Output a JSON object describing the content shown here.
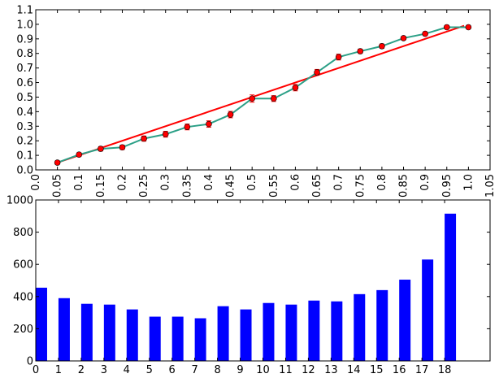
{
  "chart_data": [
    {
      "type": "line",
      "title": "",
      "xlabel": "",
      "ylabel": "",
      "xlim": [
        0.0,
        1.05
      ],
      "ylim": [
        0.0,
        1.1
      ],
      "xticks": [
        "0.0",
        "0.05",
        "0.1",
        "0.15",
        "0.2",
        "0.25",
        "0.3",
        "0.35",
        "0.4",
        "0.45",
        "0.5",
        "0.55",
        "0.6",
        "0.65",
        "0.7",
        "0.75",
        "0.8",
        "0.85",
        "0.9",
        "0.95",
        "1.0",
        "1.05"
      ],
      "yticks": [
        "0.0",
        "0.1",
        "0.2",
        "0.3",
        "0.4",
        "0.5",
        "0.6",
        "0.7",
        "0.8",
        "0.9",
        "1.0",
        "1.1"
      ],
      "grid": false,
      "series": [
        {
          "kind": "errorbar-line",
          "color": "#2ca087",
          "marker_color": "#ff0000",
          "x": [
            0.05,
            0.1,
            0.15,
            0.2,
            0.25,
            0.3,
            0.35,
            0.4,
            0.45,
            0.5,
            0.55,
            0.6,
            0.65,
            0.7,
            0.75,
            0.8,
            0.85,
            0.9,
            0.95,
            1.0
          ],
          "y": [
            0.05,
            0.105,
            0.145,
            0.155,
            0.215,
            0.245,
            0.295,
            0.315,
            0.38,
            0.49,
            0.49,
            0.565,
            0.67,
            0.775,
            0.815,
            0.85,
            0.905,
            0.935,
            0.98,
            0.98
          ],
          "error": [
            0.012,
            0.012,
            0.015,
            0.015,
            0.018,
            0.02,
            0.02,
            0.022,
            0.022,
            0.025,
            0.02,
            0.022,
            0.02,
            0.02,
            0.015,
            0.015,
            0.012,
            0.012,
            0.01,
            0.005
          ]
        },
        {
          "kind": "line",
          "color": "#ff0000",
          "x": [
            0.05,
            0.99
          ],
          "y": [
            0.05,
            0.99
          ]
        }
      ]
    },
    {
      "type": "bar",
      "title": "",
      "xlabel": "",
      "ylabel": "",
      "xlim": [
        0,
        20
      ],
      "ylim": [
        0,
        1000
      ],
      "categories": [
        "0",
        "1",
        "2",
        "3",
        "4",
        "5",
        "6",
        "7",
        "8",
        "9",
        "10",
        "11",
        "12",
        "13",
        "14",
        "15",
        "16",
        "17",
        "18"
      ],
      "yticks": [
        "0",
        "200",
        "400",
        "600",
        "800",
        "1000"
      ],
      "values": [
        455,
        390,
        355,
        350,
        320,
        275,
        275,
        265,
        340,
        320,
        360,
        350,
        375,
        370,
        415,
        440,
        505,
        630,
        915
      ],
      "bar_color": "#0000ff",
      "grid": false
    }
  ]
}
